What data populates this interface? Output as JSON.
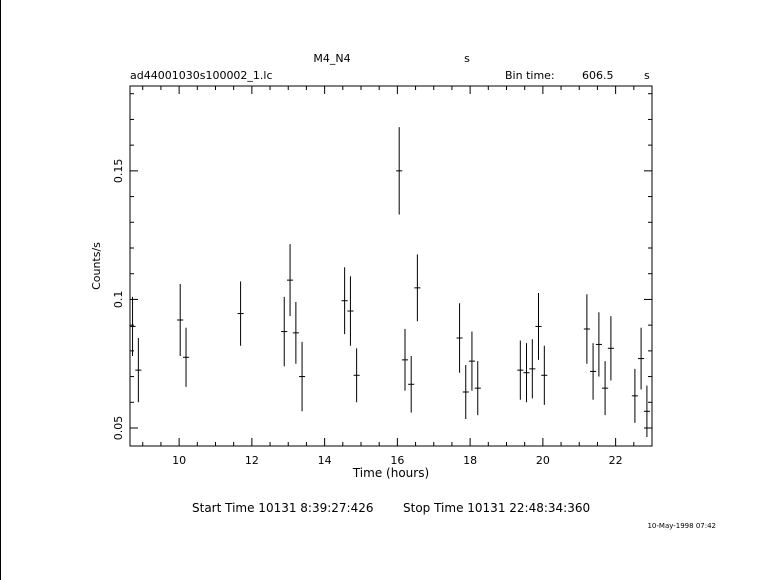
{
  "header": {
    "object": "M4_N4",
    "object_unit": "s",
    "filename": "ad44001030s100002_1.lc",
    "bin_time_label": "Bin time:",
    "bin_time_value": "606.5",
    "bin_time_unit": "s"
  },
  "footer": {
    "start_time": "Start Time 10131  8:39:27:426",
    "stop_time": "Stop Time 10131 22:48:34:360",
    "date_stamp": "10-May-1998 07:42"
  },
  "chart_data": {
    "type": "scatter",
    "xlabel": "Time (hours)",
    "ylabel": "Counts/s",
    "xlim": [
      8.65,
      23.0
    ],
    "ylim": [
      0.043,
      0.183
    ],
    "x_ticks": [
      10,
      12,
      14,
      16,
      18,
      20,
      22
    ],
    "x_tick_labels": [
      "10",
      "12",
      "14",
      "16",
      "18",
      "20",
      "22"
    ],
    "y_ticks": [
      0.05,
      0.1,
      0.15
    ],
    "y_tick_labels": [
      "0.05",
      "0.1",
      "0.15"
    ],
    "grid": false,
    "x_error_half_width": 0.084,
    "points": [
      {
        "x": 8.72,
        "y": 0.0895,
        "err": 0.0115
      },
      {
        "x": 8.88,
        "y": 0.0725,
        "err": 0.0125
      },
      {
        "x": 10.03,
        "y": 0.092,
        "err": 0.014
      },
      {
        "x": 10.19,
        "y": 0.0775,
        "err": 0.0115
      },
      {
        "x": 11.69,
        "y": 0.0945,
        "err": 0.0125
      },
      {
        "x": 12.89,
        "y": 0.0875,
        "err": 0.0135
      },
      {
        "x": 13.05,
        "y": 0.1075,
        "err": 0.014
      },
      {
        "x": 13.21,
        "y": 0.087,
        "err": 0.012
      },
      {
        "x": 13.38,
        "y": 0.07,
        "err": 0.0135
      },
      {
        "x": 14.55,
        "y": 0.0995,
        "err": 0.013
      },
      {
        "x": 14.71,
        "y": 0.0955,
        "err": 0.0135
      },
      {
        "x": 14.88,
        "y": 0.0705,
        "err": 0.0105
      },
      {
        "x": 16.05,
        "y": 0.15,
        "err": 0.017
      },
      {
        "x": 16.21,
        "y": 0.0765,
        "err": 0.012
      },
      {
        "x": 16.38,
        "y": 0.067,
        "err": 0.011
      },
      {
        "x": 16.55,
        "y": 0.1045,
        "err": 0.013
      },
      {
        "x": 17.71,
        "y": 0.085,
        "err": 0.0135
      },
      {
        "x": 17.88,
        "y": 0.064,
        "err": 0.0105
      },
      {
        "x": 18.05,
        "y": 0.076,
        "err": 0.0115
      },
      {
        "x": 18.21,
        "y": 0.0655,
        "err": 0.0105
      },
      {
        "x": 19.38,
        "y": 0.0725,
        "err": 0.0115
      },
      {
        "x": 19.55,
        "y": 0.0715,
        "err": 0.0115
      },
      {
        "x": 19.71,
        "y": 0.073,
        "err": 0.0115
      },
      {
        "x": 19.88,
        "y": 0.0895,
        "err": 0.013
      },
      {
        "x": 20.04,
        "y": 0.0705,
        "err": 0.0115
      },
      {
        "x": 21.21,
        "y": 0.0885,
        "err": 0.0135
      },
      {
        "x": 21.38,
        "y": 0.072,
        "err": 0.011
      },
      {
        "x": 21.54,
        "y": 0.0825,
        "err": 0.0125
      },
      {
        "x": 21.71,
        "y": 0.0655,
        "err": 0.0105
      },
      {
        "x": 21.87,
        "y": 0.081,
        "err": 0.0125
      },
      {
        "x": 22.53,
        "y": 0.0625,
        "err": 0.0105
      },
      {
        "x": 22.7,
        "y": 0.077,
        "err": 0.012
      },
      {
        "x": 22.86,
        "y": 0.0565,
        "err": 0.01
      }
    ]
  }
}
